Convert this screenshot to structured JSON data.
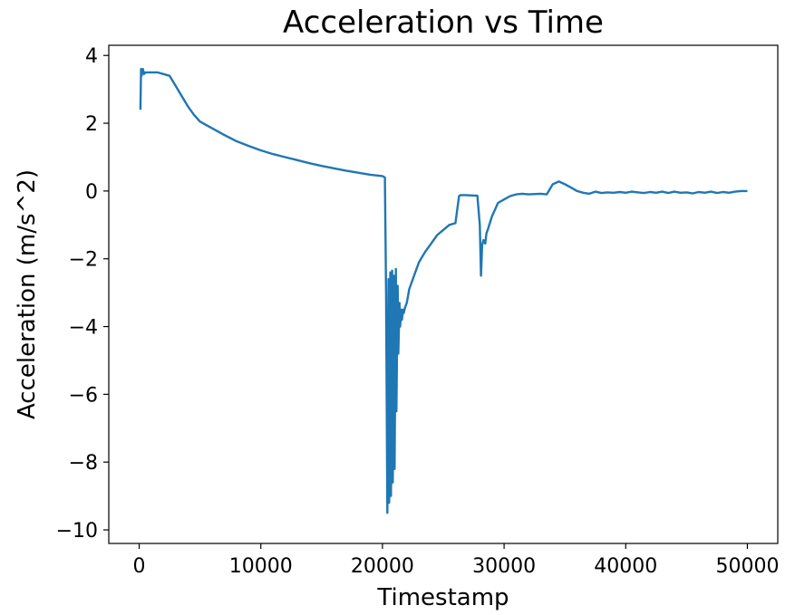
{
  "chart_data": {
    "type": "line",
    "title": "Acceleration vs Time",
    "xlabel": "Timestamp",
    "ylabel": "Acceleration (m/s^2)",
    "xlim": [
      -2500,
      52500
    ],
    "ylim": [
      -10.4,
      4.3
    ],
    "xticks": [
      0,
      10000,
      20000,
      30000,
      40000,
      50000
    ],
    "xtick_labels": [
      "0",
      "10000",
      "20000",
      "30000",
      "40000",
      "50000"
    ],
    "yticks": [
      4,
      2,
      0,
      -2,
      -4,
      -6,
      -8,
      -10
    ],
    "ytick_labels": [
      "4",
      "2",
      "0",
      "−2",
      "−4",
      "−6",
      "−8",
      "−10"
    ],
    "grid": false,
    "legend": "none",
    "series": [
      {
        "color": "#1f77b4",
        "x": [
          100,
          150,
          200,
          300,
          400,
          500,
          1000,
          1500,
          2000,
          2500,
          3000,
          3500,
          4000,
          4500,
          5000,
          5500,
          6000,
          7000,
          8000,
          9000,
          10000,
          11000,
          12000,
          13000,
          14000,
          15000,
          16000,
          17000,
          18000,
          19000,
          20000,
          20200,
          20300,
          20400,
          20500,
          20550,
          20650,
          20700,
          20800,
          20850,
          20950,
          21000,
          21100,
          21150,
          21250,
          21300,
          21400,
          21450,
          21550,
          21600,
          21700,
          21750,
          21850,
          21900,
          22000,
          22100,
          22200,
          22400,
          22700,
          23000,
          23500,
          24000,
          24500,
          25000,
          25500,
          26000,
          26300,
          26400,
          26500,
          26800,
          27200,
          27800,
          28000,
          28100,
          28200,
          28300,
          28450,
          28550,
          28700,
          29000,
          29500,
          30000,
          30500,
          31000,
          31500,
          32000,
          33000,
          33500,
          34000,
          34500,
          35000,
          35500,
          36000,
          36500,
          37000,
          37500,
          38000,
          38500,
          39000,
          39500,
          40000,
          40500,
          41000,
          41500,
          42000,
          42500,
          43000,
          43500,
          44000,
          44500,
          45000,
          45500,
          46000,
          46500,
          47000,
          47500,
          48000,
          48500,
          49000,
          49500,
          50000
        ],
        "y": [
          2.4,
          3.6,
          3.4,
          3.6,
          3.45,
          3.5,
          3.5,
          3.5,
          3.45,
          3.4,
          3.1,
          2.8,
          2.5,
          2.25,
          2.05,
          1.95,
          1.85,
          1.65,
          1.47,
          1.33,
          1.2,
          1.09,
          1.0,
          0.91,
          0.82,
          0.74,
          0.67,
          0.6,
          0.54,
          0.48,
          0.44,
          0.4,
          -3.0,
          -9.5,
          -2.6,
          -9.2,
          -2.4,
          -9.0,
          -2.35,
          -8.6,
          -2.5,
          -8.2,
          -2.3,
          -6.5,
          -2.8,
          -4.8,
          -3.3,
          -4.0,
          -3.5,
          -3.8,
          -3.5,
          -3.6,
          -3.45,
          -3.4,
          -3.3,
          -3.1,
          -2.9,
          -2.7,
          -2.4,
          -2.1,
          -1.8,
          -1.55,
          -1.3,
          -1.15,
          -1.0,
          -0.95,
          -0.15,
          -0.12,
          -0.12,
          -0.12,
          -0.13,
          -0.14,
          -1.0,
          -2.5,
          -1.6,
          -1.45,
          -1.55,
          -1.25,
          -1.1,
          -0.75,
          -0.35,
          -0.25,
          -0.15,
          -0.1,
          -0.08,
          -0.1,
          -0.08,
          -0.1,
          0.2,
          0.28,
          0.2,
          0.1,
          0.0,
          -0.05,
          -0.08,
          -0.02,
          -0.06,
          -0.04,
          -0.05,
          -0.03,
          -0.05,
          -0.02,
          -0.04,
          -0.06,
          -0.03,
          -0.05,
          -0.02,
          -0.06,
          -0.02,
          -0.05,
          -0.04,
          -0.07,
          -0.03,
          -0.05,
          -0.02,
          -0.06,
          -0.03,
          -0.05,
          -0.02,
          0.0,
          0.0
        ]
      }
    ]
  }
}
